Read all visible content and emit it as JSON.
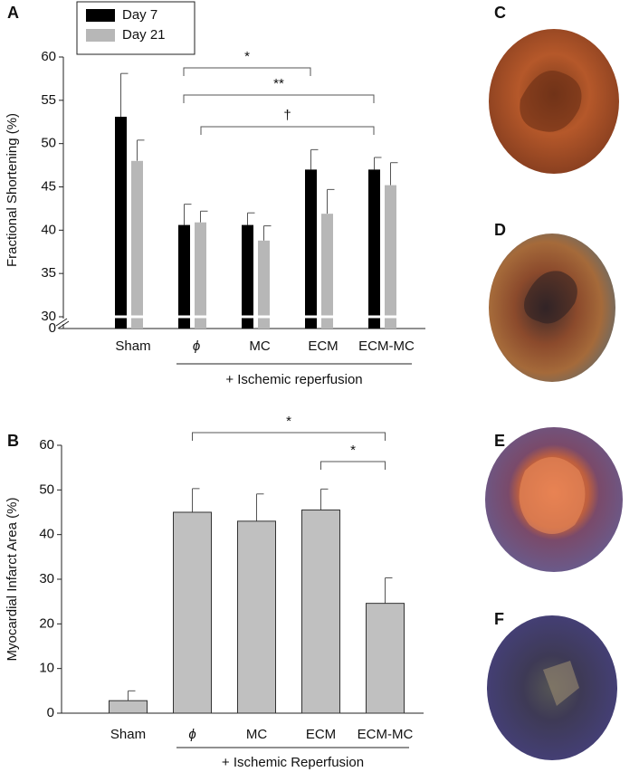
{
  "chart_data": [
    {
      "type": "bar",
      "panel": "A",
      "ylabel": "Fractional Shortening (%)",
      "categories": [
        "Sham",
        "ϕ",
        "MC",
        "ECM",
        "ECM-MC"
      ],
      "group_label": "+ Ischemic reperfusion",
      "series": [
        {
          "name": "Day 7",
          "color": "#000000",
          "values": [
            53.1,
            40.6,
            40.6,
            47.0,
            47.0
          ],
          "errors": [
            5.0,
            2.4,
            1.4,
            2.3,
            1.4
          ]
        },
        {
          "name": "Day 21",
          "color": "#b7b7b7",
          "values": [
            48.0,
            40.9,
            38.8,
            41.9,
            45.2
          ],
          "errors": [
            2.4,
            1.3,
            1.7,
            2.8,
            2.6
          ]
        }
      ],
      "ylim": [
        0,
        60
      ],
      "axis_break": [
        0,
        30
      ],
      "yticks": [
        0,
        30,
        35,
        40,
        45,
        50,
        55,
        60
      ],
      "legend": "upper left",
      "annotations": [
        {
          "text": "*",
          "from": "ϕ",
          "to": "ECM"
        },
        {
          "text": "**",
          "from": "ϕ",
          "to": "ECM-MC"
        },
        {
          "text": "†",
          "from": "ϕ",
          "to": "ECM-MC"
        }
      ]
    },
    {
      "type": "bar",
      "panel": "B",
      "ylabel": "Myocardial Infarct Area (%)",
      "categories": [
        "Sham",
        "ϕ",
        "MC",
        "ECM",
        "ECM-MC"
      ],
      "group_label": "+ Ischemic Reperfusion",
      "series": [
        {
          "color": "#c0c0c0",
          "values": [
            2.8,
            45.0,
            43.0,
            45.5,
            24.6
          ],
          "errors": [
            2.2,
            5.3,
            6.1,
            4.7,
            5.7
          ]
        }
      ],
      "ylim": [
        0,
        60
      ],
      "yticks": [
        0,
        10,
        20,
        30,
        40,
        50,
        60
      ],
      "annotations": [
        {
          "text": "*",
          "from": "ϕ",
          "to": "ECM-MC"
        },
        {
          "text": "*",
          "from": "ECM",
          "to": "ECM-MC"
        }
      ]
    }
  ],
  "photo_panels": [
    "C",
    "D",
    "E",
    "F"
  ]
}
